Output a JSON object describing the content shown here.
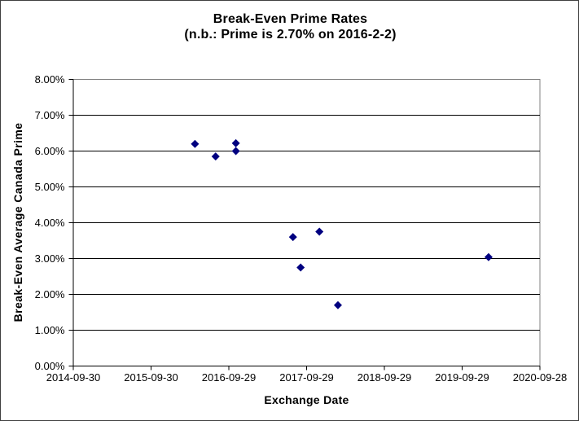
{
  "chart_data": {
    "type": "scatter",
    "title": "Break-Even Prime Rates",
    "subtitle": "(n.b.: Prime is 2.70% on 2016-2-2)",
    "xlabel": "Exchange Date",
    "ylabel": "Break-Even Average Canada Prime",
    "x_ticks": [
      "2014-09-30",
      "2015-09-30",
      "2016-09-29",
      "2017-09-29",
      "2018-09-29",
      "2019-09-29",
      "2020-09-28"
    ],
    "y_ticks": [
      "8.00%",
      "7.00%",
      "6.00%",
      "5.00%",
      "4.00%",
      "3.00%",
      "2.00%",
      "1.00%",
      "0.00%"
    ],
    "y_tick_values": [
      8,
      7,
      6,
      5,
      4,
      3,
      2,
      1,
      0
    ],
    "xlim": [
      "2014-09-30",
      "2020-09-28"
    ],
    "ylim": [
      0,
      8
    ],
    "grid": "horizontal",
    "legend": "none",
    "marker": {
      "shape": "diamond",
      "size": 10
    },
    "points": [
      {
        "x": "2016-04-23",
        "y": 6.2
      },
      {
        "x": "2016-07-29",
        "y": 5.85
      },
      {
        "x": "2016-11-01",
        "y": 6.22
      },
      {
        "x": "2016-11-01",
        "y": 6.0
      },
      {
        "x": "2017-07-27",
        "y": 3.6
      },
      {
        "x": "2017-09-01",
        "y": 2.75
      },
      {
        "x": "2017-11-28",
        "y": 3.75
      },
      {
        "x": "2018-02-23",
        "y": 1.7
      },
      {
        "x": "2020-01-31",
        "y": 3.04
      }
    ]
  },
  "colors": {
    "marker": "#000080",
    "gridline": "#000000",
    "axis": "#000000",
    "plot_border": "#808080",
    "background": "#ffffff"
  }
}
